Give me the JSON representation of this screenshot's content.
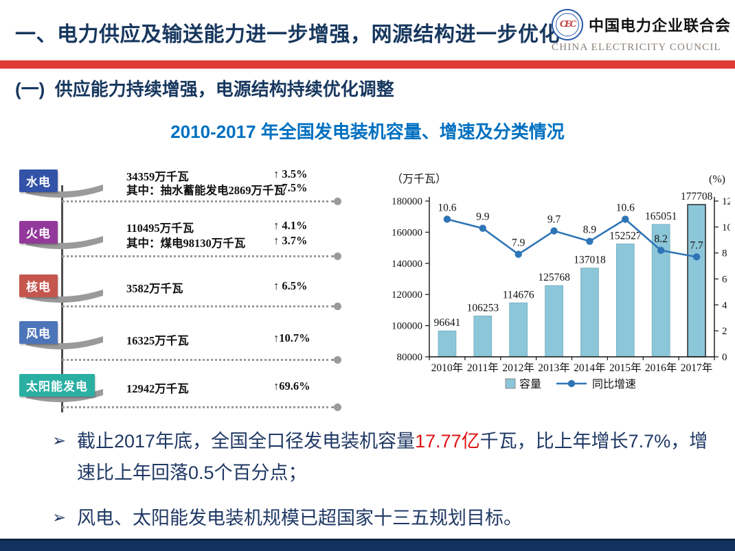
{
  "header": {
    "title": "一、电力供应及输送能力进一步增强，网源结构进一步优化",
    "logo": {
      "org_cn": "中国电力企业联合会",
      "org_en": "CHINA ELECTRICITY COUNCIL",
      "emblem_text": "CEC"
    }
  },
  "section_heading": "(一)  供应能力持续增强，电源结构持续优化调整",
  "chart_title": "2010-2017 年全国发电装机容量、增速及分类情况",
  "left_panel": {
    "items": [
      {
        "label": "水电",
        "color": "#3353A8",
        "lines": [
          {
            "text": "34359万千瓦",
            "pct": "↑ 3.5%"
          },
          {
            "text": "其中：抽水蓄能发电2869万千瓦",
            "pct": "↑ 7.5%"
          }
        ]
      },
      {
        "label": "火电",
        "color": "#93399B",
        "lines": [
          {
            "text": "110495万千瓦",
            "pct": "↑ 4.1%"
          },
          {
            "text": "其中：煤电98130万千瓦",
            "pct": "↑ 3.7%"
          }
        ]
      },
      {
        "label": "核电",
        "color": "#C4564E",
        "lines": [
          {
            "text": "3582万千瓦",
            "pct": "↑ 6.5%"
          }
        ]
      },
      {
        "label": "风电",
        "color": "#4C74B9",
        "lines": [
          {
            "text": "16325万千瓦",
            "pct": "↑10.7%"
          }
        ]
      },
      {
        "label": "太阳能发电",
        "color": "#2BAFA3",
        "lines": [
          {
            "text": "12942万千瓦",
            "pct": "↑69.6%"
          }
        ]
      }
    ]
  },
  "chart_data": {
    "type": "bar",
    "categories": [
      "2010年",
      "2011年",
      "2012年",
      "2013年",
      "2014年",
      "2015年",
      "2016年",
      "2017年"
    ],
    "series": [
      {
        "name": "容量",
        "type": "bar",
        "color": "#8CC6D9",
        "values": [
          96641,
          106253,
          114676,
          125768,
          137018,
          152527,
          165051,
          177708
        ]
      },
      {
        "name": "同比增速",
        "type": "line",
        "color": "#2E75B6",
        "values": [
          10.6,
          9.9,
          7.9,
          9.7,
          8.9,
          10.6,
          8.2,
          7.7
        ]
      }
    ],
    "left_axis": {
      "label": "（万千瓦）",
      "min": 80000,
      "max": 180000,
      "step": 20000
    },
    "right_axis": {
      "label": "(%)",
      "min": 0,
      "max": 12,
      "step": 2
    },
    "legend": [
      "容量",
      "同比增速"
    ],
    "legend_position": "bottom",
    "grid": false
  },
  "bullets": {
    "glyph": "➢",
    "items": [
      {
        "segments": [
          {
            "text": "截止2017年底，全国全口径发电装机容量"
          },
          {
            "text": "17.77亿",
            "red": true
          },
          {
            "text": "千瓦，比上年增长7.7%，增速比上年回落0.5个百分点；"
          }
        ]
      },
      {
        "segments": [
          {
            "text": "风电、太阳能发电装机规模已超国家十三五规划目标。"
          }
        ]
      }
    ]
  },
  "colors": {
    "header_navy": "#17375E",
    "red_stripe": "#E03A34",
    "chart_title_blue": "#0070C0",
    "bullet_navy": "#1F3864",
    "highlight_red": "#E11212",
    "bar_fill": "#8CC6D9",
    "line_blue": "#2E75B6",
    "footer_navy": "#12315E"
  }
}
